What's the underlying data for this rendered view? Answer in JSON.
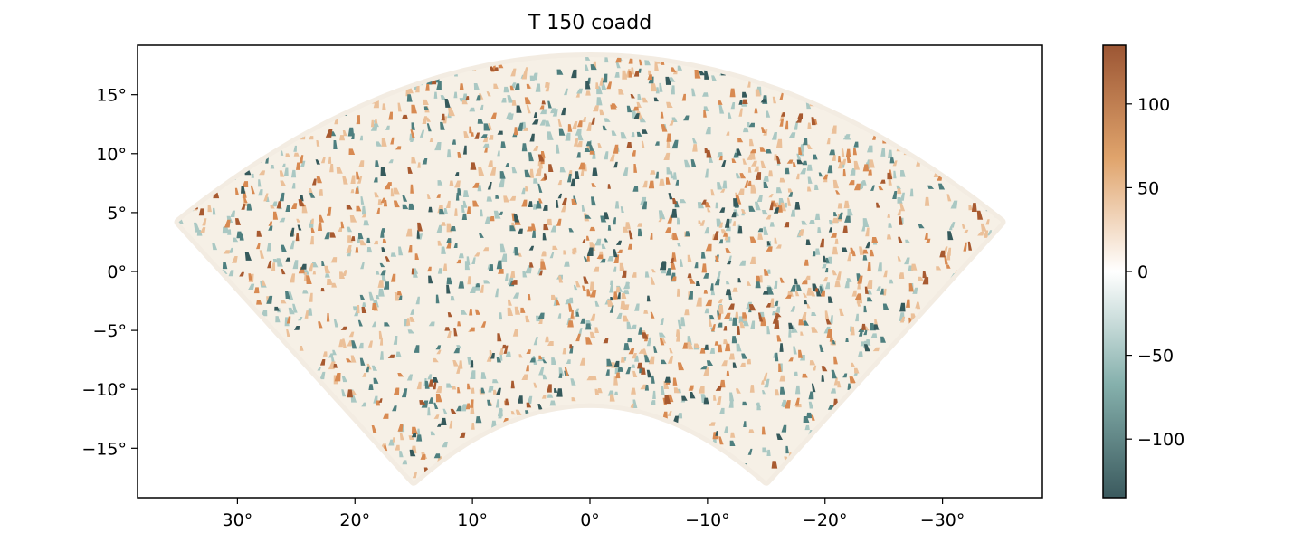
{
  "chart_data": {
    "type": "heatmap",
    "title": "T 150 coadd",
    "xlabel": "",
    "ylabel": "",
    "xlim": [
      38.5,
      -38.5
    ],
    "ylim": [
      -19.2,
      19.2
    ],
    "x_ticks": [
      30,
      20,
      10,
      0,
      -10,
      -20,
      -30
    ],
    "x_tick_labels": [
      "30°",
      "20°",
      "10°",
      "0°",
      "−10°",
      "−20°",
      "−30°"
    ],
    "y_ticks": [
      15,
      10,
      5,
      0,
      -5,
      -10,
      -15
    ],
    "y_tick_labels": [
      "15°",
      "10°",
      "5°",
      "0°",
      "−5°",
      "−10°",
      "−15°"
    ],
    "footprint": {
      "shape": "annular-sector",
      "ra_range": [
        -35,
        35
      ],
      "dec_top_center": 18.2,
      "dec_top_edge": 4.2,
      "dec_bottom_center": -11.2,
      "dec_bottom_corner_ra": 15,
      "dec_bottom_corner": -17.8
    },
    "colorbar": {
      "range": [
        -135,
        135
      ],
      "ticks": [
        100,
        50,
        0,
        -50,
        -100
      ],
      "tick_labels": [
        "100",
        "50",
        "0",
        "−50",
        "−100"
      ],
      "colormap": {
        "low": "#3b5a5e",
        "mid_low": "#85b0ac",
        "mid": "#ffffff",
        "mid_high": "#e0a46c",
        "high": "#9c5634"
      }
    },
    "grid": false,
    "legend": "none"
  }
}
